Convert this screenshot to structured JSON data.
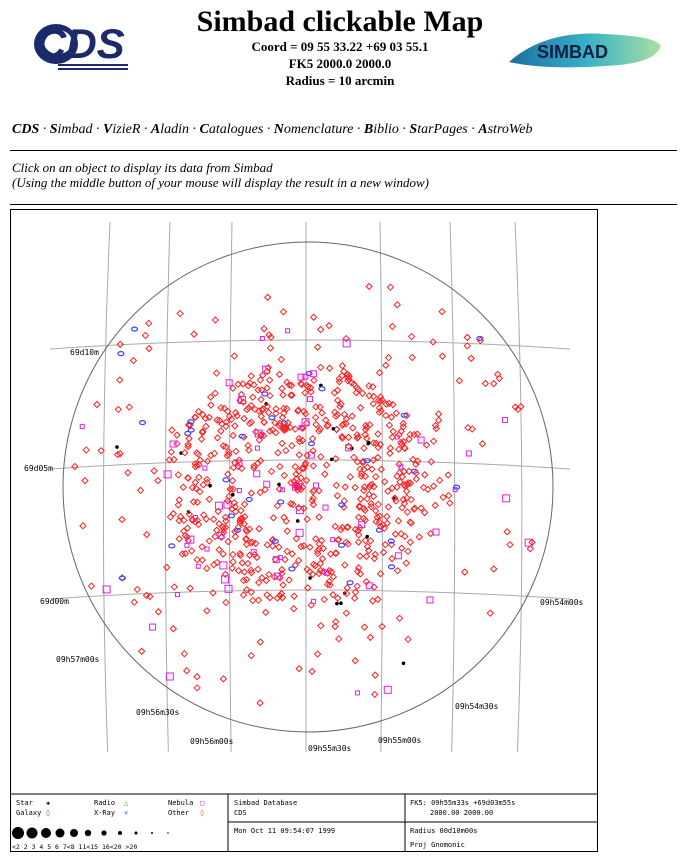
{
  "header": {
    "title": "Simbad clickable Map",
    "coord": "Coord = 09 55 33.22 +69 03 55.1",
    "frame": "FK5 2000.0 2000.0",
    "radius": "Radius = 10 arcmin",
    "cds_logo_text": "CDS",
    "simbad_logo_text": "SIMBAD"
  },
  "nav": {
    "items": [
      {
        "initial": "CDS",
        "rest": ""
      },
      {
        "initial": "S",
        "rest": "imbad"
      },
      {
        "initial": "V",
        "rest": "izieR"
      },
      {
        "initial": "A",
        "rest": "ladin"
      },
      {
        "initial": "C",
        "rest": "atalogues"
      },
      {
        "initial": "N",
        "rest": "omenclature"
      },
      {
        "initial": "B",
        "rest": "iblio"
      },
      {
        "initial": "S",
        "rest": "tarPages"
      },
      {
        "initial": "A",
        "rest": "stroWeb"
      }
    ],
    "separator": " · "
  },
  "instructions": {
    "line1": "Click on an object to display its data from Simbad",
    "line2": "(Using the middle button of your mouse will display the result in a new window)"
  },
  "map": {
    "dec_labels": [
      "69d10m",
      "69d05m",
      "69d00m"
    ],
    "ra_labels": [
      "09h57m00s",
      "09h56m30s",
      "09h56m00s",
      "09h55m30s",
      "09h55m00s",
      "09h54m30s",
      "09h54m00s"
    ],
    "colors": {
      "other": "#ff2020",
      "galaxy": "#4040ff",
      "nebula": "#e020e0",
      "star": "#000000",
      "radio": "#20b020"
    },
    "legend": {
      "star": "Star",
      "galaxy": "Galaxy",
      "radio": "Radio",
      "xray": "X-Ray",
      "nebula": "Nebula",
      "other": "Other",
      "mag_scale": "<2 2 3 4 5 6 7<8 11<15 16<20 >20",
      "database": "Simbad Database",
      "org": "CDS",
      "date": "Mon Oct 11 09:54:07 1999",
      "fk5": "FK5: 09h55m33s +69d03m55s",
      "epoch": "2000.00  2000.00",
      "radius": "Radius 00d10m00s",
      "proj": "Proj Gnomonic"
    }
  }
}
